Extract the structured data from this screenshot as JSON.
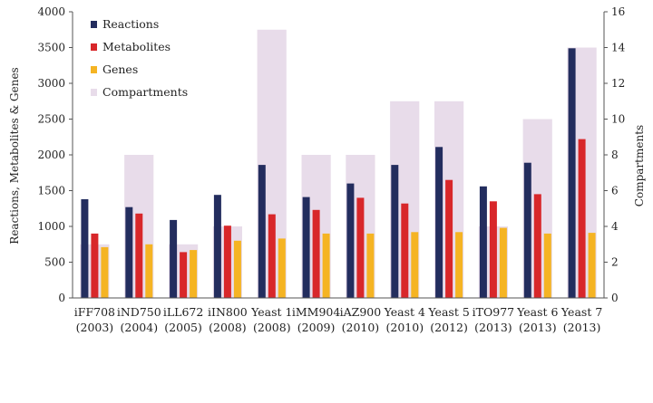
{
  "chart_data": {
    "type": "bar",
    "ylabel_left": "Reactions, Metabolites & Genes",
    "ylabel_right": "Compartments",
    "ylim_left": [
      0,
      4000
    ],
    "yticks_left": [
      0,
      500,
      1000,
      1500,
      2000,
      2500,
      3000,
      3500,
      4000
    ],
    "ylim_right": [
      0,
      16
    ],
    "yticks_right": [
      0,
      2,
      4,
      6,
      8,
      10,
      12,
      14,
      16
    ],
    "grid": false,
    "legend_position": "top-left",
    "categories": [
      {
        "name": "iFF708",
        "year": "(2003)"
      },
      {
        "name": "iND750",
        "year": "(2004)"
      },
      {
        "name": "iLL672",
        "year": "(2005)"
      },
      {
        "name": "iIN800",
        "year": "(2008)"
      },
      {
        "name": "Yeast 1",
        "year": "(2008)"
      },
      {
        "name": "iMM904",
        "year": "(2009)"
      },
      {
        "name": "iAZ900",
        "year": "(2010)"
      },
      {
        "name": "Yeast 4",
        "year": "(2010)"
      },
      {
        "name": "Yeast 5",
        "year": "(2012)"
      },
      {
        "name": "iTO977",
        "year": "(2013)"
      },
      {
        "name": "Yeast 6",
        "year": "(2013)"
      },
      {
        "name": "Yeast 7",
        "year": "(2013)"
      }
    ],
    "series": [
      {
        "name": "Reactions",
        "color": "#232d5e",
        "axis": "left",
        "values": [
          1380,
          1270,
          1090,
          1440,
          1860,
          1410,
          1600,
          1860,
          2110,
          1560,
          1890,
          3490
        ]
      },
      {
        "name": "Metabolites",
        "color": "#d8272a",
        "axis": "left",
        "values": [
          900,
          1180,
          640,
          1010,
          1170,
          1230,
          1400,
          1320,
          1650,
          1350,
          1450,
          2220
        ]
      },
      {
        "name": "Genes",
        "color": "#f5b423",
        "axis": "left",
        "values": [
          710,
          750,
          670,
          800,
          830,
          900,
          900,
          920,
          920,
          980,
          900,
          910
        ]
      },
      {
        "name": "Compartments",
        "color": "#e8dcea",
        "axis": "right",
        "values": [
          3,
          8,
          3,
          4,
          15,
          8,
          8,
          11,
          11,
          4,
          10,
          14
        ]
      }
    ]
  }
}
